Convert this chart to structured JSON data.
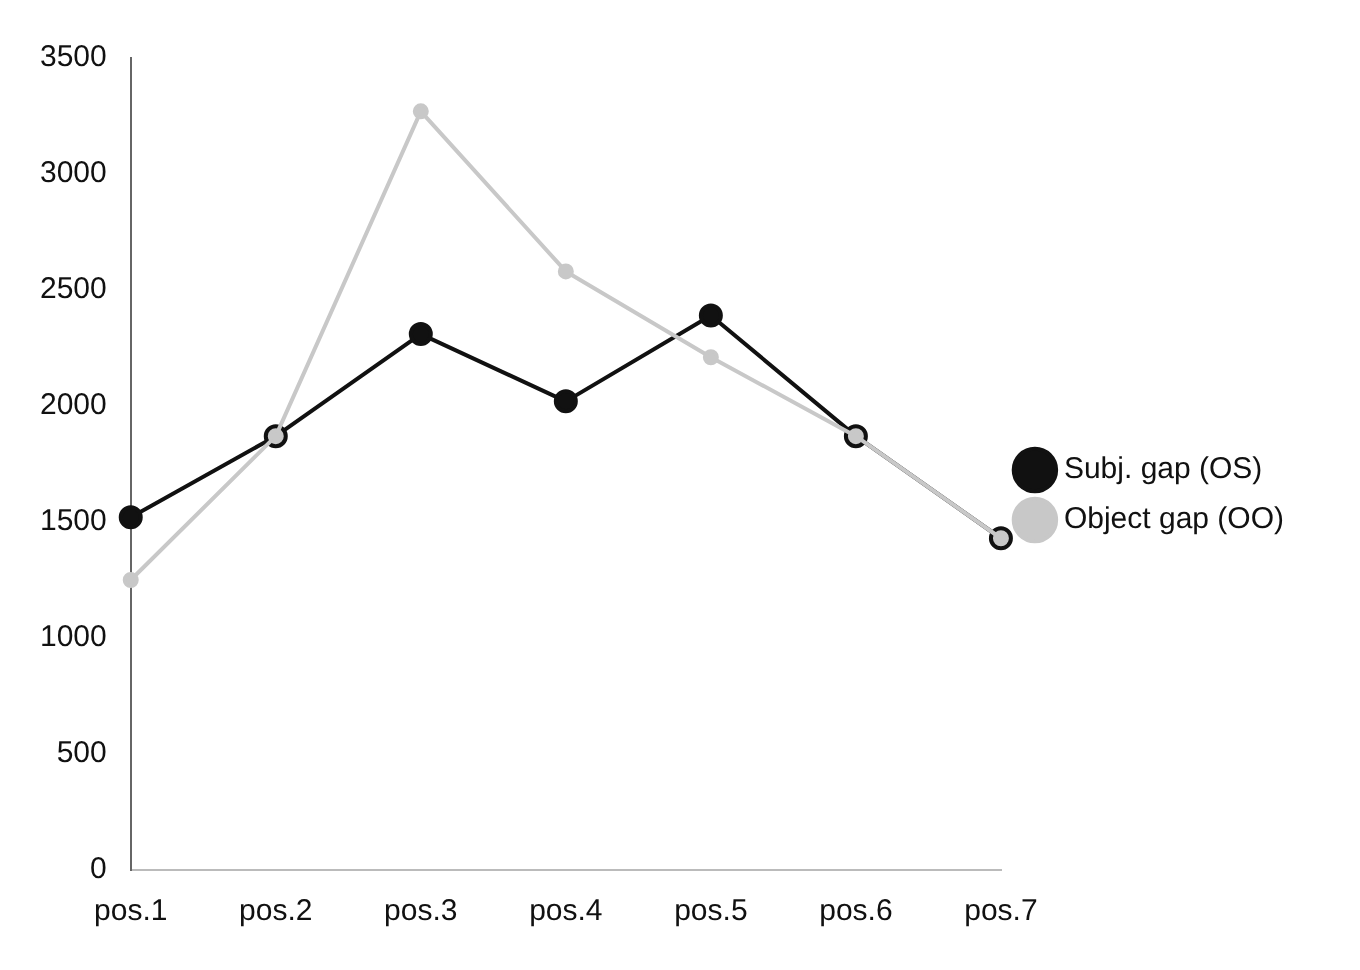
{
  "chart_data": {
    "type": "line",
    "categories": [
      "pos.1",
      "pos.2",
      "pos.3",
      "pos.4",
      "pos.5",
      "pos.6",
      "pos.7"
    ],
    "series": [
      {
        "name": "Subj. gap (OS)",
        "color": "#111111",
        "values": [
          1520,
          1870,
          2310,
          2020,
          2390,
          1870,
          1430
        ]
      },
      {
        "name": "Object gap (OO)",
        "color": "#c8c8c8",
        "values": [
          1250,
          1870,
          3270,
          2580,
          2210,
          1870,
          1430
        ]
      }
    ],
    "ylim": [
      0,
      3500
    ],
    "yticks": [
      0,
      500,
      1000,
      1500,
      2000,
      2500,
      3000,
      3500
    ],
    "grid": false,
    "legend": "right",
    "marker": "circle",
    "line_style": "solid"
  }
}
